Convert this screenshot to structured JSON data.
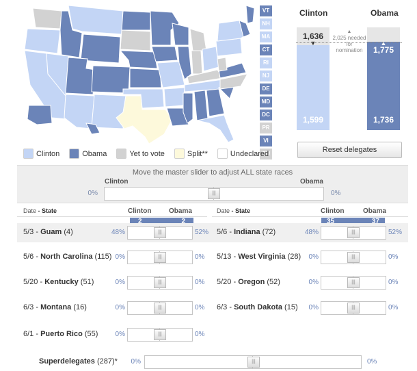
{
  "colors": {
    "clinton": "#c3d5f5",
    "obama": "#6b84b8",
    "yet_to_vote": "#d2d2d2",
    "split": "#fdf9db",
    "undeclared": "#ffffff"
  },
  "legend": [
    {
      "label": "Clinton",
      "color": "#c3d5f5"
    },
    {
      "label": "Obama",
      "color": "#6b84b8"
    },
    {
      "label": "Yet to vote",
      "color": "#d2d2d2"
    },
    {
      "label": "Split**",
      "color": "#fdf9db"
    },
    {
      "label": "Undeclared",
      "color": "#ffffff"
    }
  ],
  "small_states": [
    {
      "code": "VT",
      "color": "#6b84b8"
    },
    {
      "code": "NH",
      "color": "#c3d5f5"
    },
    {
      "code": "MA",
      "color": "#c3d5f5"
    },
    {
      "code": "CT",
      "color": "#6b84b8"
    },
    {
      "code": "RI",
      "color": "#c3d5f5"
    },
    {
      "code": "NJ",
      "color": "#c3d5f5"
    },
    {
      "code": "DE",
      "color": "#6b84b8"
    },
    {
      "code": "MD",
      "color": "#6b84b8"
    },
    {
      "code": "DC",
      "color": "#6b84b8"
    },
    {
      "code": "PR",
      "color": "#d2d2d2"
    },
    {
      "code": "VI",
      "color": "#6b84b8"
    },
    {
      "code": "GU",
      "color": "#d2d2d2"
    }
  ],
  "totals": {
    "clinton": {
      "name": "Clinton",
      "projected": "1,636",
      "current": "1,599",
      "fill": 0.83
    },
    "obama": {
      "name": "Obama",
      "projected": "1,775",
      "current": "1,736",
      "fill": 0.86
    },
    "needed": "2,025 needed for nomination"
  },
  "reset_label": "Reset delegates",
  "master": {
    "caption": "Move the master slider to adjust ALL state races",
    "clinton_label": "Clinton",
    "obama_label": "Obama",
    "left_pct": "0%",
    "right_pct": "0%",
    "handle": "|||"
  },
  "headers": {
    "date_label": "Date",
    "sep": " - ",
    "state_label": "State",
    "clinton": "Clinton",
    "obama": "Obama"
  },
  "top_counts": {
    "left": {
      "clinton": "2",
      "obama": "2"
    },
    "right": {
      "clinton": "35",
      "obama": "37"
    }
  },
  "races": [
    {
      "date": "5/3",
      "state": "Guam",
      "delegates": "(4)",
      "left": "48%",
      "right": "52%"
    },
    {
      "date": "5/6",
      "state": "Indiana",
      "delegates": "(72)",
      "left": "48%",
      "right": "52%"
    },
    {
      "date": "5/6",
      "state": "North Carolina",
      "delegates": "(115)",
      "left": "0%",
      "right": "0%"
    },
    {
      "date": "5/13",
      "state": "West Virginia",
      "delegates": "(28)",
      "left": "0%",
      "right": "0%"
    },
    {
      "date": "5/20",
      "state": "Kentucky",
      "delegates": "(51)",
      "left": "0%",
      "right": "0%"
    },
    {
      "date": "5/20",
      "state": "Oregon",
      "delegates": "(52)",
      "left": "0%",
      "right": "0%"
    },
    {
      "date": "6/3",
      "state": "Montana",
      "delegates": "(16)",
      "left": "0%",
      "right": "0%"
    },
    {
      "date": "6/3",
      "state": "South Dakota",
      "delegates": "(15)",
      "left": "0%",
      "right": "0%"
    },
    {
      "date": "6/1",
      "state": "Puerto Rico",
      "delegates": "(55)",
      "left": "0%",
      "right": "0%"
    }
  ],
  "superdelegates": {
    "label": "Superdelegates",
    "count": "(287)*",
    "left": "0%",
    "right": "0%"
  }
}
